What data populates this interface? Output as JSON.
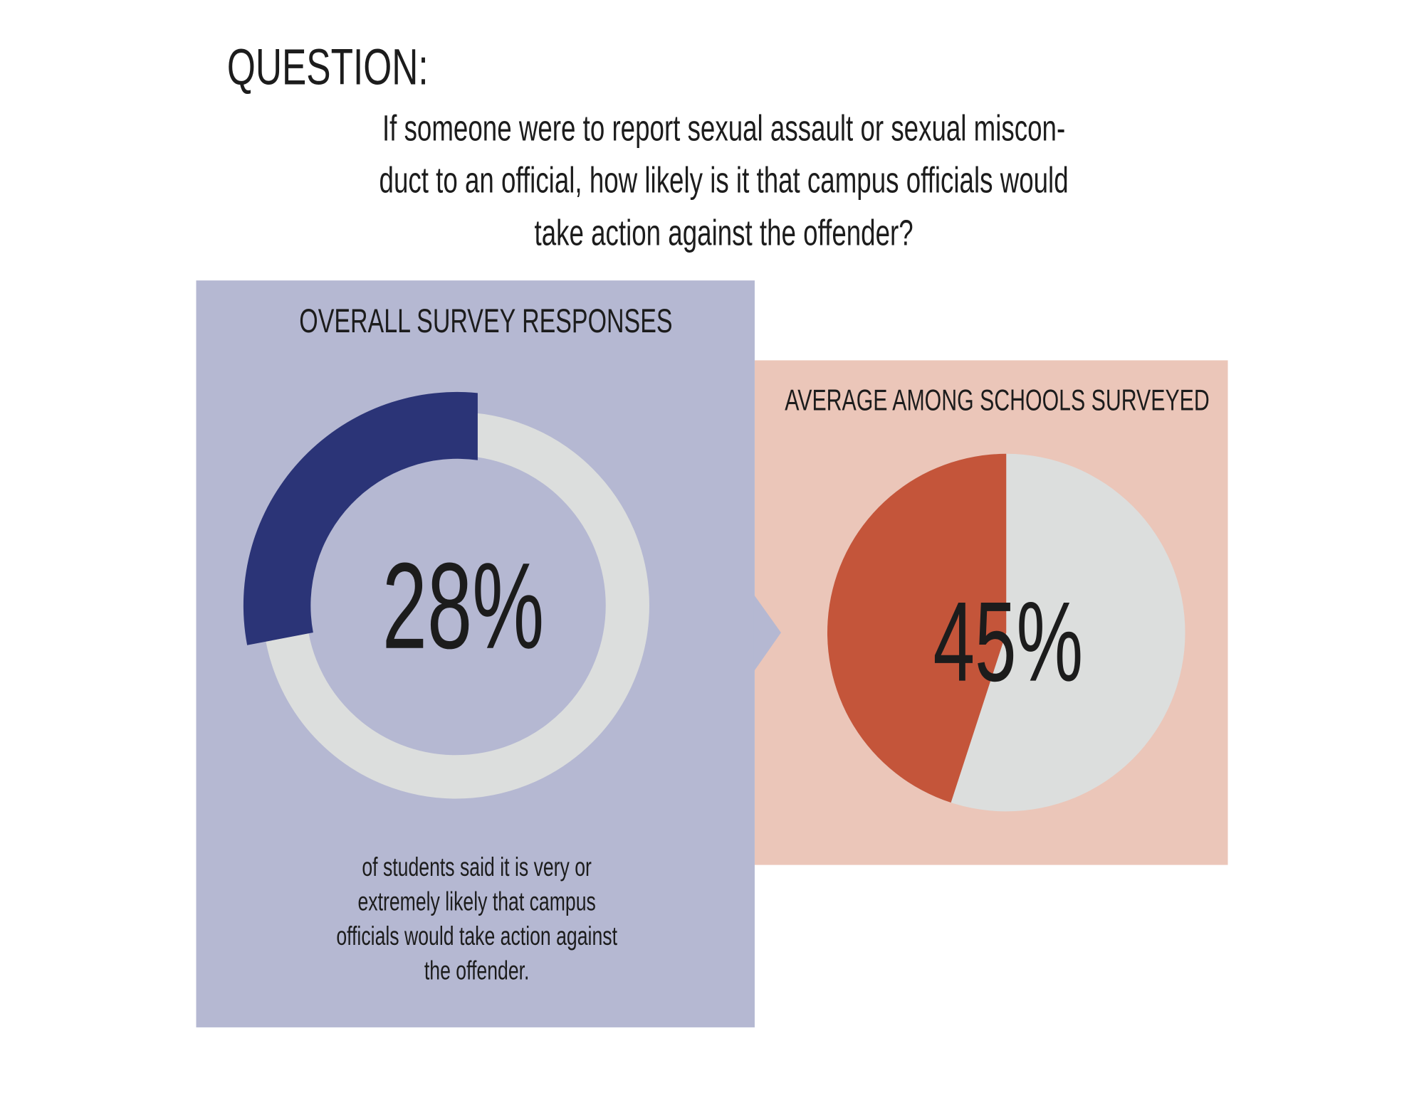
{
  "header": {
    "title": "QUESTION:",
    "question": [
      "If someone were to report sexual assault or sexual miscon-",
      "duct to an official, how likely is it that campus officials would",
      "take action against the offender?"
    ]
  },
  "chart_data": [
    {
      "type": "donut",
      "title": "OVERALL SURVEY RESPONSES",
      "values": [
        28
      ],
      "value_labels": [
        "28%"
      ],
      "color": "#2b3477",
      "caption": [
        "of students said it is very or",
        "extremely likely that campus",
        "officials would take action against",
        "the offender."
      ]
    },
    {
      "type": "pie",
      "title": "AVERAGE AMONG SCHOOLS SURVEYED",
      "values": [
        45
      ],
      "value_labels": [
        "45%"
      ],
      "color": "#c4553a"
    }
  ]
}
